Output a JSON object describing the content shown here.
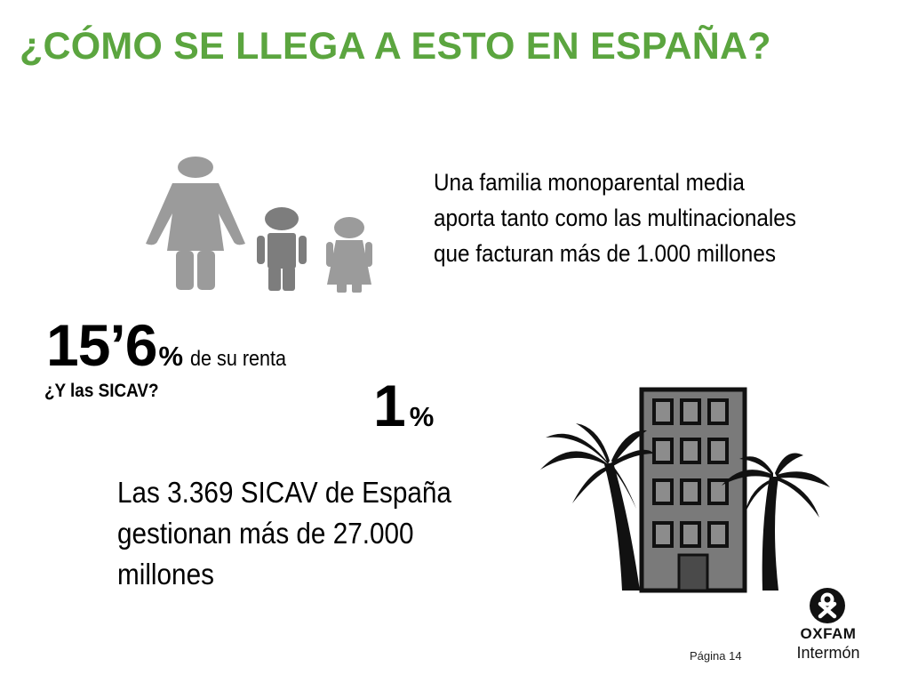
{
  "slide": {
    "title": "¿CÓMO SE LLEGA A ESTO EN ESPAÑA?",
    "title_color": "#5ba53f"
  },
  "family": {
    "icon": "family-icon",
    "text_lines": [
      "Una familia monoparental media",
      "aporta tanto como las multinacionales",
      "que facturan más de 1.000 millones"
    ],
    "stat_number": "15’6",
    "stat_percent": "%",
    "stat_suffix": "de su renta"
  },
  "sicav": {
    "question": "¿Y las SICAV?",
    "stat_number": "1",
    "stat_percent": "%",
    "text_lines": [
      "Las 3.369 SICAV de España",
      "gestionan más de 27.000",
      "millones"
    ],
    "icon": "building-with-palms-icon"
  },
  "footer": {
    "page_label": "Página 14",
    "logo_name": "OXFAM",
    "logo_subname": "Intermón"
  }
}
